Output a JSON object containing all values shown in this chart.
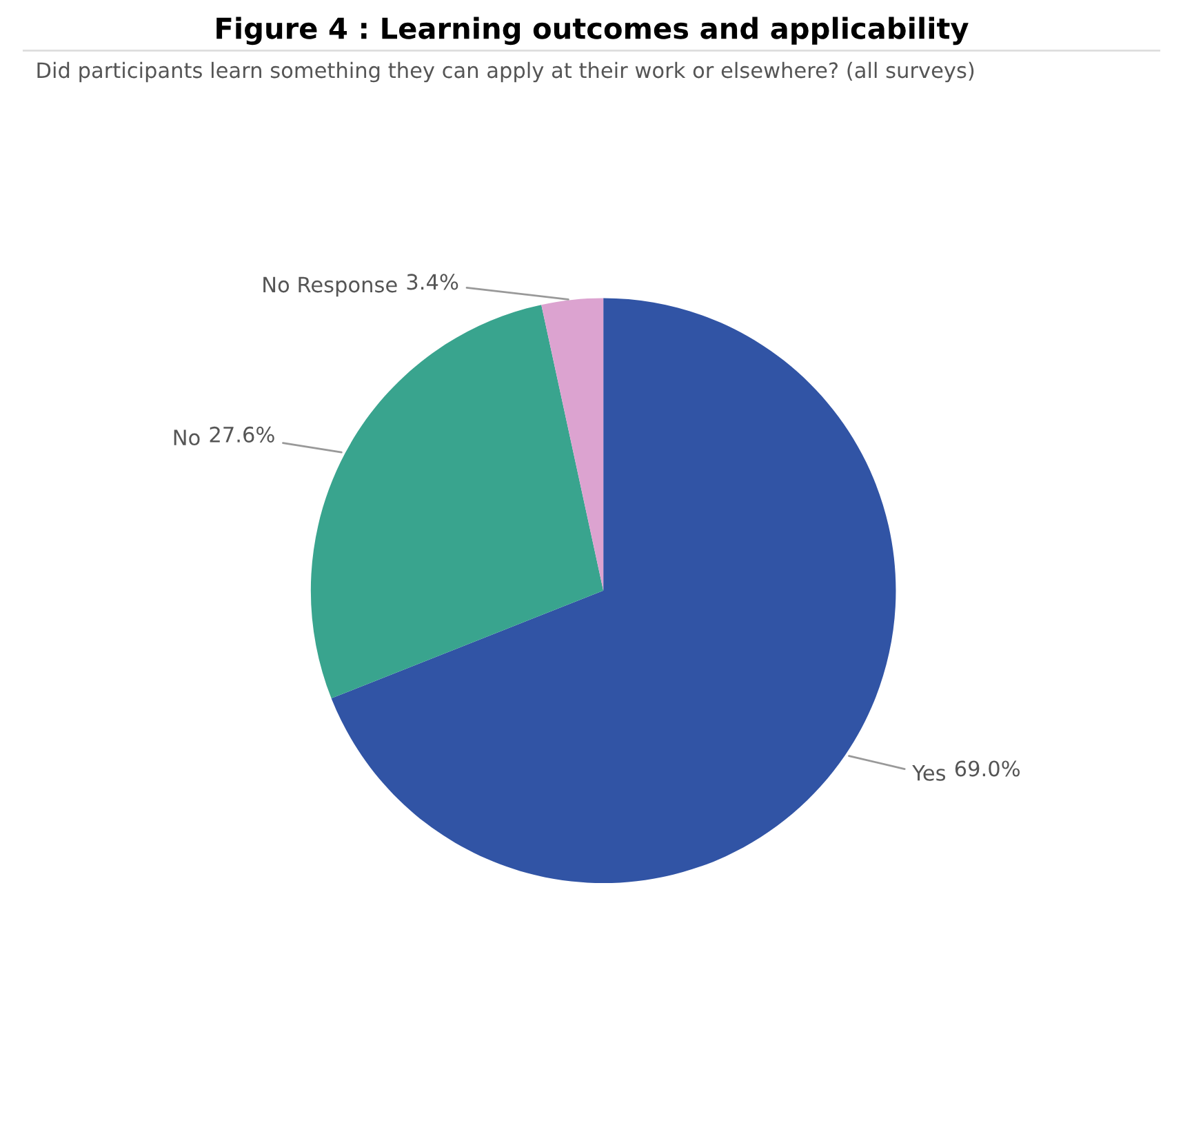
{
  "chart_data": {
    "type": "pie",
    "title": "Figure 4 : Learning outcomes and applicability",
    "subtitle": "Did participants learn something they can apply at their work or elsewhere? (all surveys)",
    "categories": [
      "Yes",
      "No",
      "No Response"
    ],
    "values": [
      69.0,
      27.6,
      3.4
    ],
    "colors": [
      "#3154a5",
      "#39a48e",
      "#dca3d0"
    ],
    "value_labels": [
      "69.0%",
      "27.6%",
      "3.4%"
    ],
    "legend": false
  }
}
